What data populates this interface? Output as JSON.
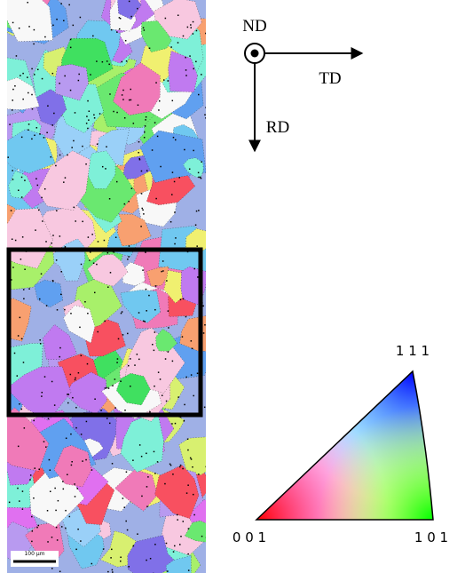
{
  "axes": {
    "normal": "ND",
    "transverse": "TD",
    "rolling": "RD"
  },
  "ipf_legend": {
    "top": "1 1 1",
    "left": "0 0 1",
    "right": "1 0 1"
  },
  "scale_bar": "100 µm"
}
